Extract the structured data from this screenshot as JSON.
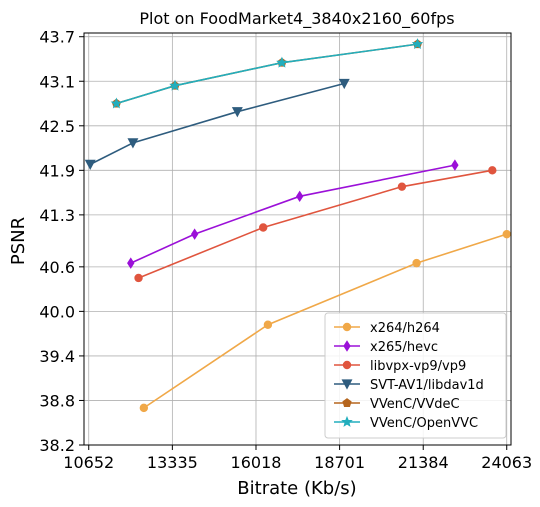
{
  "chart_data": {
    "type": "line",
    "title": "Plot on FoodMarket4_3840x2160_60fps",
    "xlabel": "Bitrate (Kb/s)",
    "ylabel": "PSNR",
    "xlim": [
      10500,
      24200
    ],
    "ylim": [
      38.2,
      43.75
    ],
    "xticks": [
      10652,
      13335,
      16018,
      18701,
      21384,
      24063
    ],
    "yticks": [
      38.2,
      38.8,
      39.4,
      40.0,
      40.6,
      41.3,
      41.9,
      42.5,
      43.1,
      43.7
    ],
    "ytick_labels": [
      "38.2",
      "38.8",
      "39.4",
      "40.0",
      "40.6",
      "41.3",
      "41.9",
      "42.5",
      "43.1",
      "43.7"
    ],
    "grid": true,
    "legend_position": "lower-right",
    "series": [
      {
        "name": "x264/h264",
        "color": "#F0A848",
        "marker": "circle",
        "x": [
          12420,
          16400,
          21170,
          24063
        ],
        "y": [
          38.7,
          39.82,
          40.65,
          41.04
        ]
      },
      {
        "name": "x265/hevc",
        "color": "#9B10D8",
        "marker": "diamond",
        "x": [
          12000,
          14050,
          17420,
          22400
        ],
        "y": [
          40.65,
          41.04,
          41.55,
          41.97
        ]
      },
      {
        "name": "libvpx-vp9/vp9",
        "color": "#E0553E",
        "marker": "circle",
        "x": [
          12250,
          16250,
          20700,
          23600
        ],
        "y": [
          40.45,
          41.13,
          41.68,
          41.9
        ]
      },
      {
        "name": "SVT-AV1/libdav1d",
        "color": "#2E5C7E",
        "marker": "triangle-down",
        "x": [
          10700,
          12070,
          15420,
          18850
        ],
        "y": [
          41.98,
          42.27,
          42.69,
          43.07
        ]
      },
      {
        "name": "VVenC/VVdeC",
        "color": "#B5651D",
        "marker": "pentagon",
        "x": [
          11540,
          13420,
          16850,
          21200
        ],
        "y": [
          42.8,
          43.04,
          43.35,
          43.6
        ]
      },
      {
        "name": "VVenC/OpenVVC",
        "color": "#22AEBD",
        "marker": "star",
        "x": [
          11540,
          13420,
          16850,
          21200
        ],
        "y": [
          42.8,
          43.04,
          43.35,
          43.6
        ]
      }
    ]
  }
}
